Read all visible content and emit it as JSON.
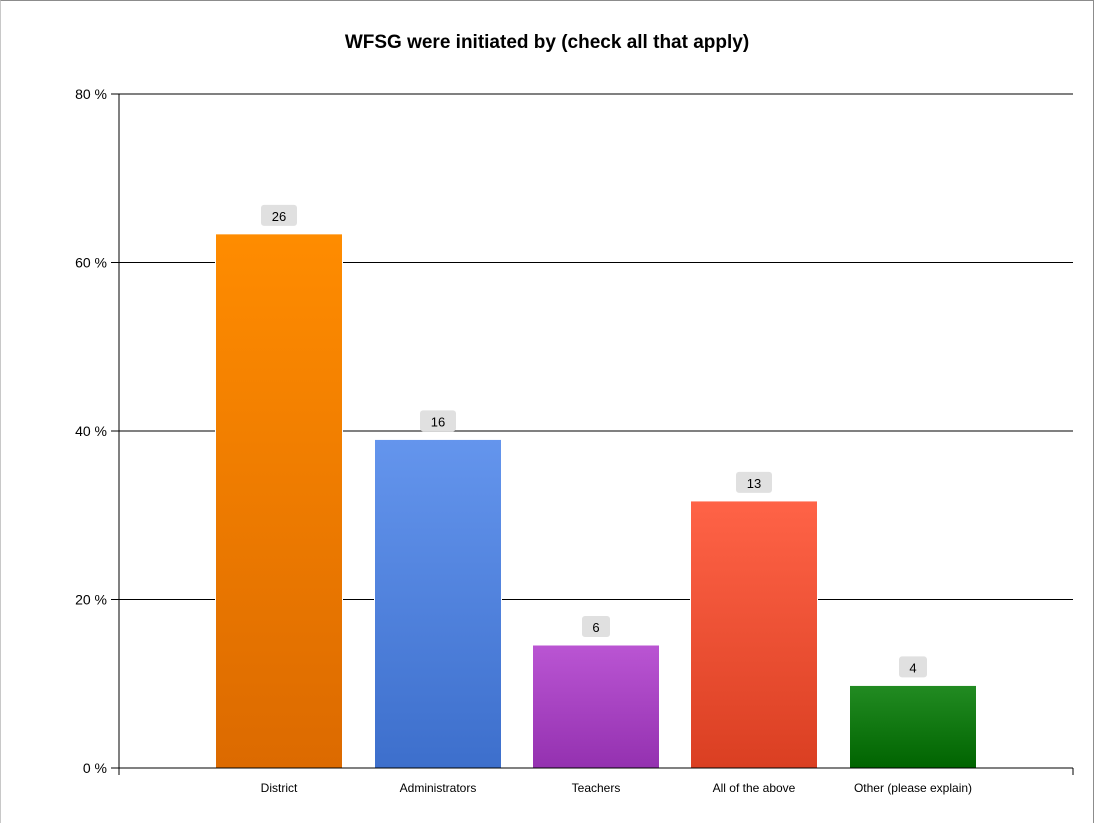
{
  "chart_data": {
    "type": "bar",
    "title": "WFSG were initiated by (check all that apply)",
    "xlabel": "",
    "ylabel": "",
    "categories": [
      "District",
      "Administrators",
      "Teachers",
      "All of the above",
      "Other (please explain)"
    ],
    "values": [
      63.4,
      39.0,
      14.6,
      31.7,
      9.8
    ],
    "counts": [
      "26",
      "16",
      "6",
      "13",
      "4"
    ],
    "colors": [
      [
        "#ff8c00",
        "#dc6a00"
      ],
      [
        "#6495ed",
        "#3d6fcc"
      ],
      [
        "#ba55d3",
        "#9431b0"
      ],
      [
        "#ff6347",
        "#da3f22"
      ],
      [
        "#228b22",
        "#006400"
      ]
    ],
    "ylim": [
      0,
      80
    ],
    "yticks": [
      0,
      20,
      40,
      60,
      80
    ],
    "ytick_labels": [
      "0 %",
      "20 %",
      "40 %",
      "60 %",
      "80 %"
    ],
    "grid": true,
    "legend": "none"
  }
}
